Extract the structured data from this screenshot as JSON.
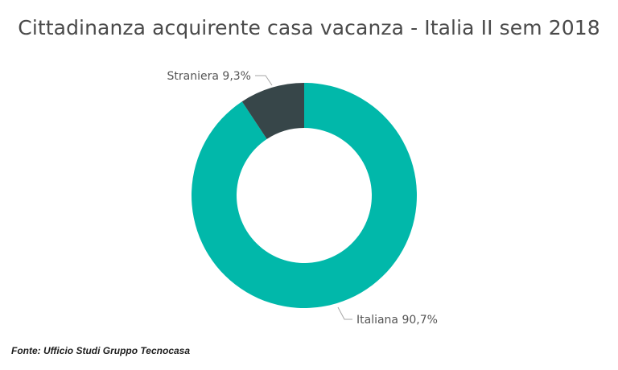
{
  "chart_data": {
    "type": "pie",
    "title": "Cittadinanza acquirente casa vacanza - Italia II sem 2018",
    "donut": true,
    "slices": [
      {
        "label": "Italiana",
        "value": 90.7,
        "display": "Italiana 90,7%",
        "color": "#01B8AA"
      },
      {
        "label": "Straniera",
        "value": 9.3,
        "display": "Straniera 9,3%",
        "color": "#374649"
      }
    ],
    "legend": "none"
  },
  "source": "Fonte: Ufficio Studi Gruppo Tecnocasa"
}
